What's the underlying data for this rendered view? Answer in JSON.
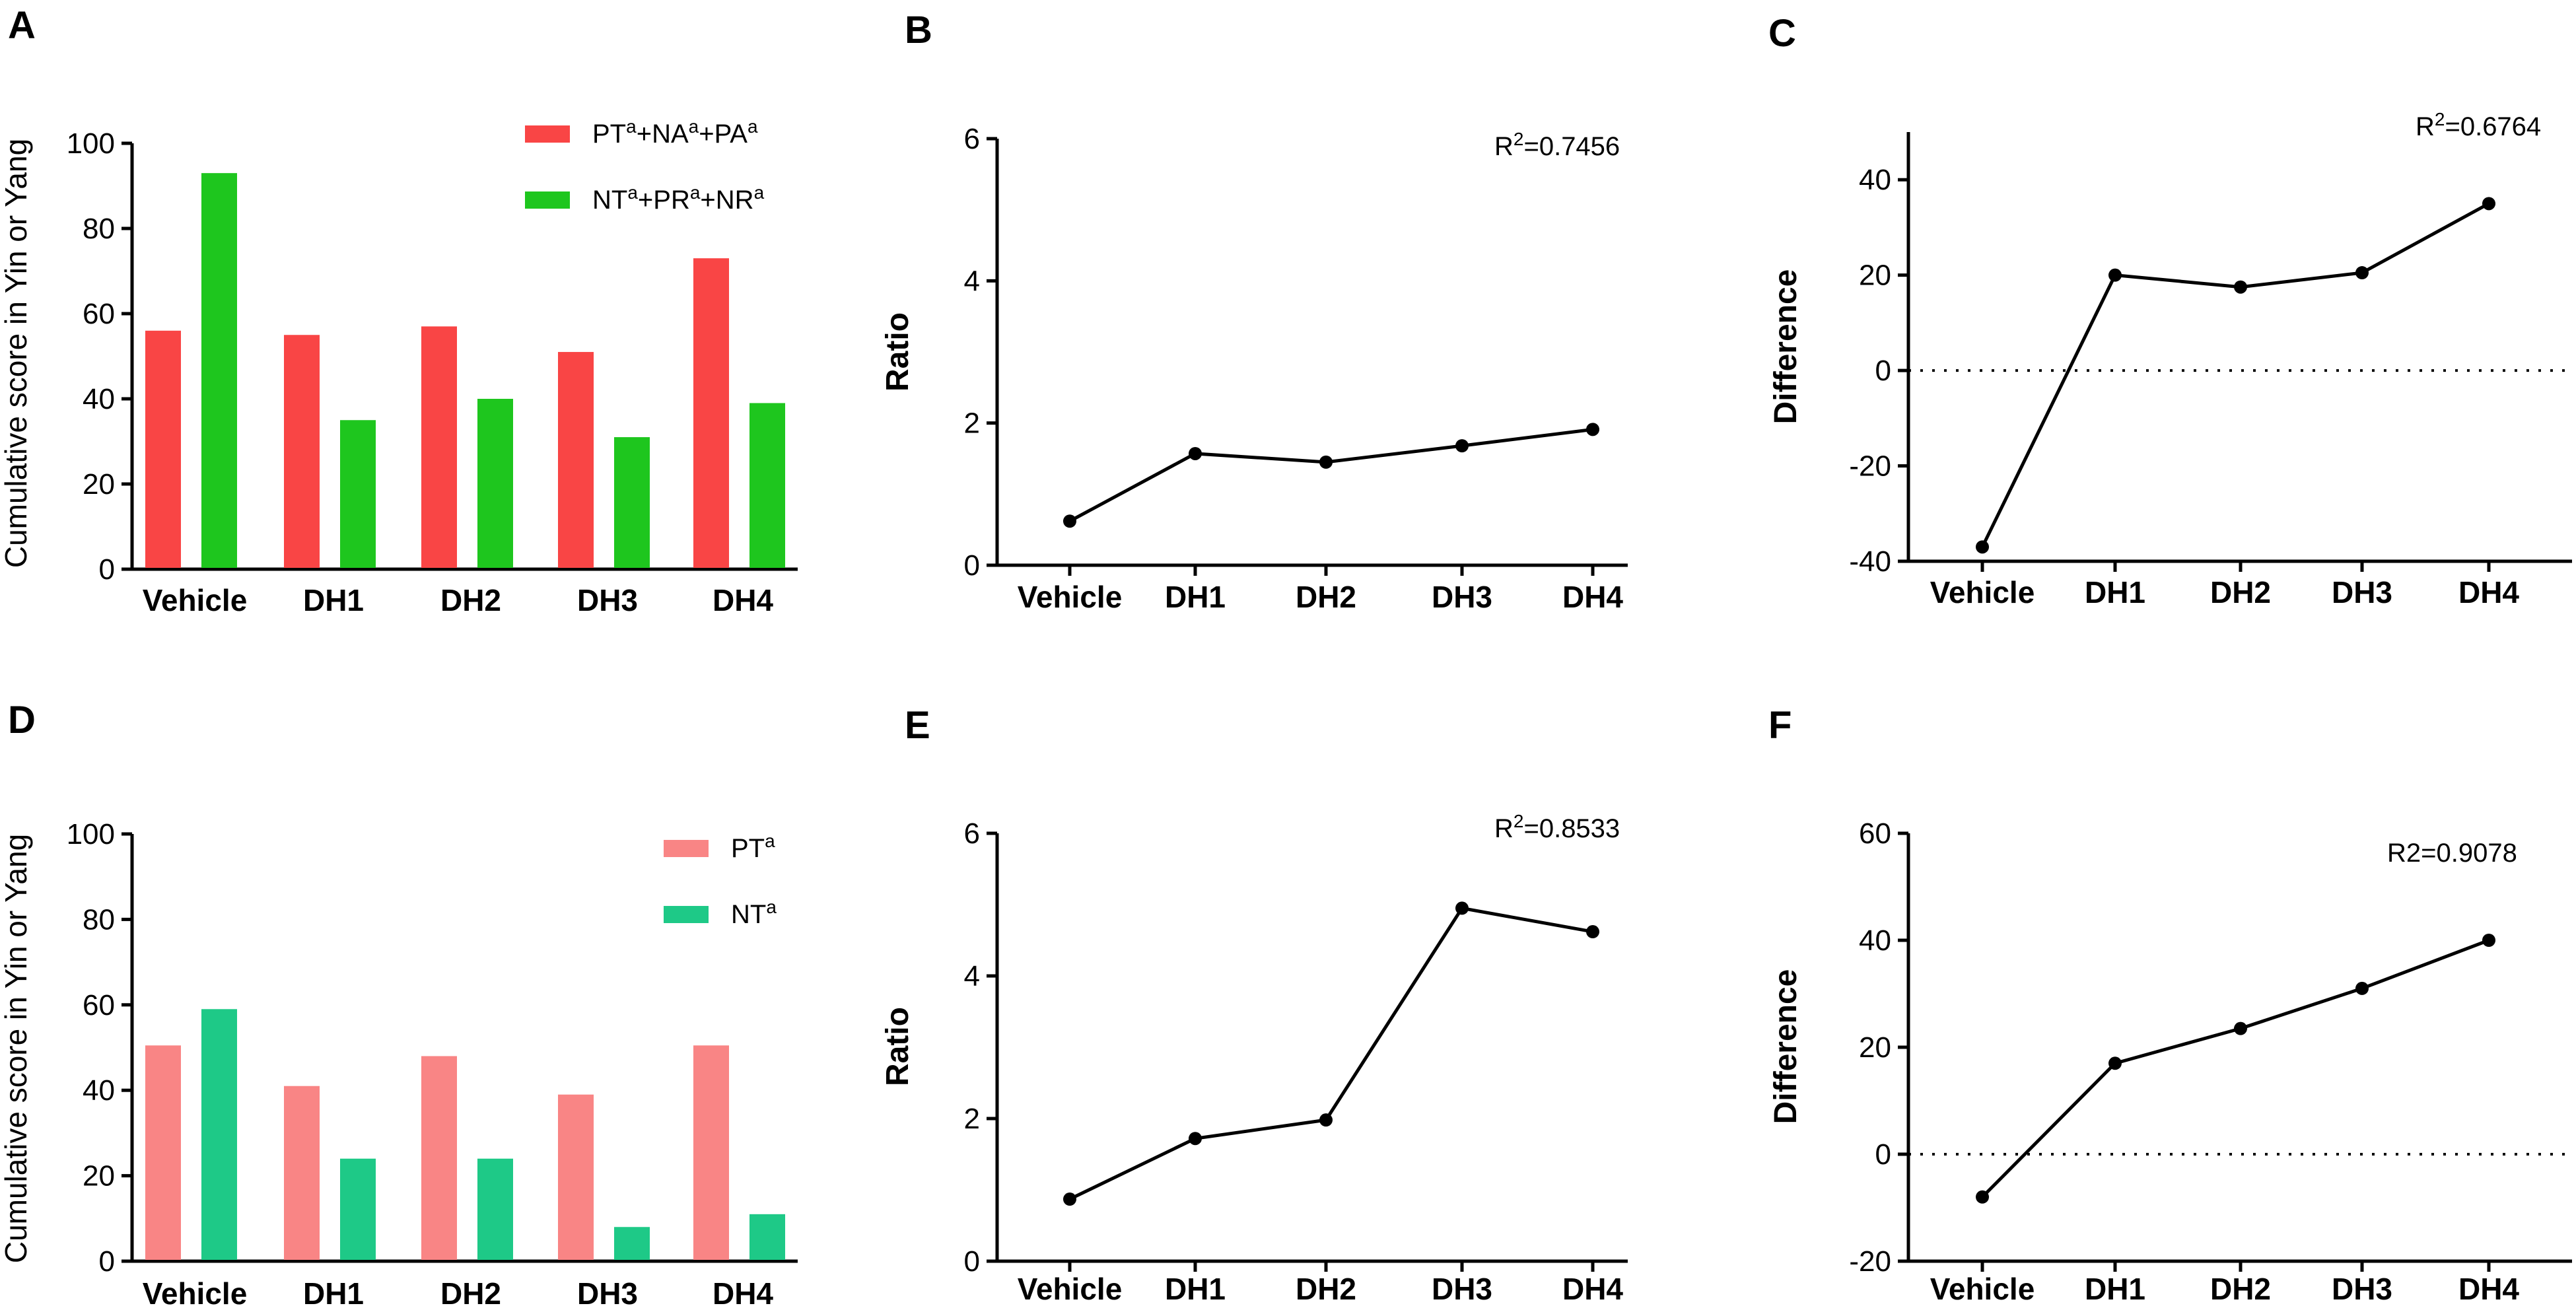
{
  "colors": {
    "A_red": "#f94545",
    "A_green": "#1ec61e",
    "D_pink": "#f98585",
    "D_teal": "#1ec987"
  },
  "chart_data": [
    {
      "id": "A",
      "type": "bar",
      "panel_label": "A",
      "ylabel": "Cumulative score in Yin or Yang",
      "ylim": [
        0,
        100
      ],
      "yticks": [
        0,
        20,
        40,
        60,
        80,
        100
      ],
      "categories": [
        "Vehicle",
        "DH1",
        "DH2",
        "DH3",
        "DH4"
      ],
      "series": [
        {
          "name": "PT+NA+PA",
          "label_parts": [
            "PT",
            "a",
            "+NA",
            "a",
            "+PA",
            "a"
          ],
          "color": "#f94545",
          "values": [
            56,
            55,
            57,
            51,
            73
          ]
        },
        {
          "name": "NT+PR+NR",
          "label_parts": [
            "NT",
            "a",
            "+PR",
            "a",
            "+NR",
            "a"
          ],
          "color": "#1ec61e",
          "values": [
            93,
            35,
            40,
            31,
            39
          ]
        }
      ],
      "legend_position": "top-right"
    },
    {
      "id": "B",
      "type": "line",
      "panel_label": "B",
      "ylabel": "Ratio",
      "ylim": [
        0,
        6
      ],
      "yticks": [
        0,
        2,
        4,
        6
      ],
      "categories": [
        "Vehicle",
        "DH1",
        "DH2",
        "DH3",
        "DH4"
      ],
      "values": [
        0.62,
        1.57,
        1.45,
        1.68,
        1.91
      ],
      "annotation": {
        "prefix": "R",
        "sup": "2",
        "suffix": "=0.7456",
        "position": "top-right"
      }
    },
    {
      "id": "C",
      "type": "line",
      "panel_label": "C",
      "ylabel": "Difference",
      "ylim": [
        -40,
        50
      ],
      "yticks": [
        -40,
        -20,
        0,
        20,
        40
      ],
      "categories": [
        "Vehicle",
        "DH1",
        "DH2",
        "DH3",
        "DH4"
      ],
      "values": [
        -37,
        20,
        17.5,
        20.5,
        35
      ],
      "zero_line": true,
      "annotation": {
        "prefix": "R",
        "sup": "2",
        "suffix": "=0.6764",
        "position": "top-right"
      }
    },
    {
      "id": "D",
      "type": "bar",
      "panel_label": "D",
      "ylabel": "Cumulative score in Yin or Yang",
      "ylim": [
        0,
        100
      ],
      "yticks": [
        0,
        20,
        40,
        60,
        80,
        100
      ],
      "categories": [
        "Vehicle",
        "DH1",
        "DH2",
        "DH3",
        "DH4"
      ],
      "series": [
        {
          "name": "PT",
          "label_parts": [
            "PT",
            "a"
          ],
          "color": "#f98585",
          "values": [
            50.5,
            41,
            48,
            39,
            50.5
          ]
        },
        {
          "name": "NT",
          "label_parts": [
            "NT",
            "a"
          ],
          "color": "#1ec987",
          "values": [
            59,
            24,
            24,
            8,
            11
          ]
        }
      ],
      "legend_position": "top-right"
    },
    {
      "id": "E",
      "type": "line",
      "panel_label": "E",
      "ylabel": "Ratio",
      "ylim": [
        0,
        6
      ],
      "yticks": [
        0,
        2,
        4,
        6
      ],
      "categories": [
        "Vehicle",
        "DH1",
        "DH2",
        "DH3",
        "DH4"
      ],
      "values": [
        0.87,
        1.72,
        1.98,
        4.95,
        4.62
      ],
      "annotation": {
        "prefix": "R",
        "sup": "2",
        "suffix": "=0.8533",
        "position": "top-right"
      }
    },
    {
      "id": "F",
      "type": "line",
      "panel_label": "F",
      "ylabel": "Difference",
      "ylim": [
        -20,
        60
      ],
      "yticks": [
        -20,
        0,
        20,
        40,
        60
      ],
      "categories": [
        "Vehicle",
        "DH1",
        "DH2",
        "DH3",
        "DH4"
      ],
      "values": [
        -8,
        17,
        23.5,
        31,
        40
      ],
      "zero_line": true,
      "annotation": {
        "prefix": "R2=0.9078",
        "sup": "",
        "suffix": "",
        "position": "top-right"
      }
    }
  ]
}
